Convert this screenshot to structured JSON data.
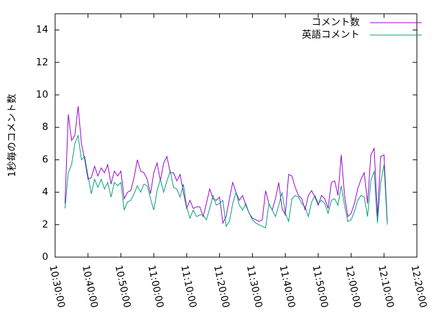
{
  "chart_data": {
    "type": "line",
    "y_label": "1秒毎のコメント数",
    "x": [
      "10:33:00",
      "10:34:00",
      "10:35:00",
      "10:36:00",
      "10:37:00",
      "10:38:00",
      "10:39:00",
      "10:40:00",
      "10:41:00",
      "10:42:00",
      "10:43:00",
      "10:44:00",
      "10:45:00",
      "10:46:00",
      "10:47:00",
      "10:48:00",
      "10:49:00",
      "10:50:00",
      "10:51:00",
      "10:52:00",
      "10:53:00",
      "10:54:00",
      "10:55:00",
      "10:56:00",
      "10:57:00",
      "10:58:00",
      "10:59:00",
      "11:00:00",
      "11:01:00",
      "11:02:00",
      "11:03:00",
      "11:04:00",
      "11:05:00",
      "11:06:00",
      "11:07:00",
      "11:08:00",
      "11:09:00",
      "11:10:00",
      "11:11:00",
      "11:12:00",
      "11:13:00",
      "11:14:00",
      "11:15:00",
      "11:16:00",
      "11:17:00",
      "11:18:00",
      "11:19:00",
      "11:20:00",
      "11:21:00",
      "11:22:00",
      "11:23:00",
      "11:24:00",
      "11:25:00",
      "11:26:00",
      "11:27:00",
      "11:28:00",
      "11:29:00",
      "11:30:00",
      "11:31:00",
      "11:32:00",
      "11:33:00",
      "11:34:00",
      "11:35:00",
      "11:36:00",
      "11:37:00",
      "11:38:00",
      "11:39:00",
      "11:40:00",
      "11:41:00",
      "11:42:00",
      "11:43:00",
      "11:44:00",
      "11:45:00",
      "11:46:00",
      "11:47:00",
      "11:48:00",
      "11:49:00",
      "11:50:00",
      "11:51:00",
      "11:52:00",
      "11:53:00",
      "11:54:00",
      "11:55:00",
      "11:56:00",
      "11:57:00",
      "11:58:00",
      "11:59:00",
      "12:00:00",
      "12:01:00",
      "12:02:00",
      "12:03:00",
      "12:04:00",
      "12:05:00",
      "12:06:00",
      "12:07:00",
      "12:08:00",
      "12:09:00",
      "12:10:00",
      "12:11:00"
    ],
    "series": [
      {
        "name": "コメント数",
        "color": "#9400d3",
        "values": [
          3.3,
          8.8,
          7.2,
          7.5,
          9.3,
          7.0,
          6.0,
          4.8,
          4.9,
          5.6,
          5.0,
          5.5,
          5.2,
          5.7,
          4.5,
          5.3,
          5.0,
          5.3,
          3.6,
          4.0,
          4.1,
          4.9,
          6.0,
          5.3,
          5.2,
          4.8,
          3.9,
          5.2,
          5.8,
          4.7,
          5.8,
          6.2,
          5.2,
          5.2,
          4.7,
          5.1,
          4.0,
          3.0,
          3.5,
          3.0,
          3.1,
          3.1,
          2.5,
          3.3,
          4.2,
          3.6,
          3.5,
          3.7,
          2.1,
          2.5,
          3.6,
          4.6,
          4.0,
          3.5,
          3.8,
          3.2,
          2.7,
          2.4,
          2.3,
          2.2,
          2.3,
          4.1,
          3.3,
          2.9,
          3.6,
          4.6,
          3.0,
          2.6,
          5.1,
          5.0,
          4.3,
          3.8,
          3.6,
          2.9,
          3.8,
          4.1,
          3.7,
          3.2,
          3.8,
          3.6,
          3.0,
          4.6,
          4.7,
          3.8,
          6.3,
          3.8,
          2.5,
          2.7,
          3.3,
          4.2,
          4.8,
          5.2,
          3.3,
          6.3,
          6.7,
          2.5,
          6.2,
          6.3,
          2.2
        ]
      },
      {
        "name": "英語コメント",
        "color": "#009e73",
        "values": [
          3.0,
          5.2,
          5.7,
          7.0,
          7.5,
          6.0,
          6.2,
          5.0,
          3.9,
          4.8,
          4.3,
          4.8,
          4.2,
          4.6,
          3.7,
          4.6,
          4.4,
          4.6,
          2.9,
          3.4,
          3.5,
          3.9,
          4.4,
          4.0,
          4.5,
          4.4,
          3.6,
          2.9,
          4.1,
          4.8,
          4.0,
          4.7,
          5.3,
          4.3,
          4.2,
          3.7,
          4.5,
          3.1,
          2.4,
          2.9,
          2.5,
          2.6,
          2.6,
          2.3,
          3.0,
          3.8,
          3.2,
          3.3,
          3.5,
          1.9,
          2.2,
          3.3,
          4.0,
          3.2,
          2.9,
          3.3,
          2.7,
          2.3,
          2.1,
          2.0,
          1.9,
          1.8,
          3.3,
          2.9,
          2.5,
          3.2,
          4.0,
          2.7,
          2.2,
          3.6,
          3.8,
          3.7,
          3.3,
          3.1,
          2.5,
          3.4,
          3.8,
          3.3,
          3.5,
          3.3,
          2.7,
          3.5,
          3.6,
          3.2,
          4.4,
          3.2,
          2.2,
          2.3,
          2.8,
          3.5,
          3.8,
          3.7,
          2.5,
          4.7,
          5.3,
          2.1,
          4.6,
          5.7,
          2.0
        ]
      }
    ],
    "xlim": [
      "10:30:00",
      "12:20:00"
    ],
    "xticks": [
      "10:30:00",
      "10:40:00",
      "10:50:00",
      "11:00:00",
      "11:10:00",
      "11:20:00",
      "11:30:00",
      "11:40:00",
      "11:50:00",
      "12:00:00",
      "12:10:00",
      "12:20:00"
    ],
    "ylim": [
      0,
      15
    ],
    "yticks": [
      0,
      2,
      4,
      6,
      8,
      10,
      12,
      14
    ],
    "legend": "top-right"
  }
}
